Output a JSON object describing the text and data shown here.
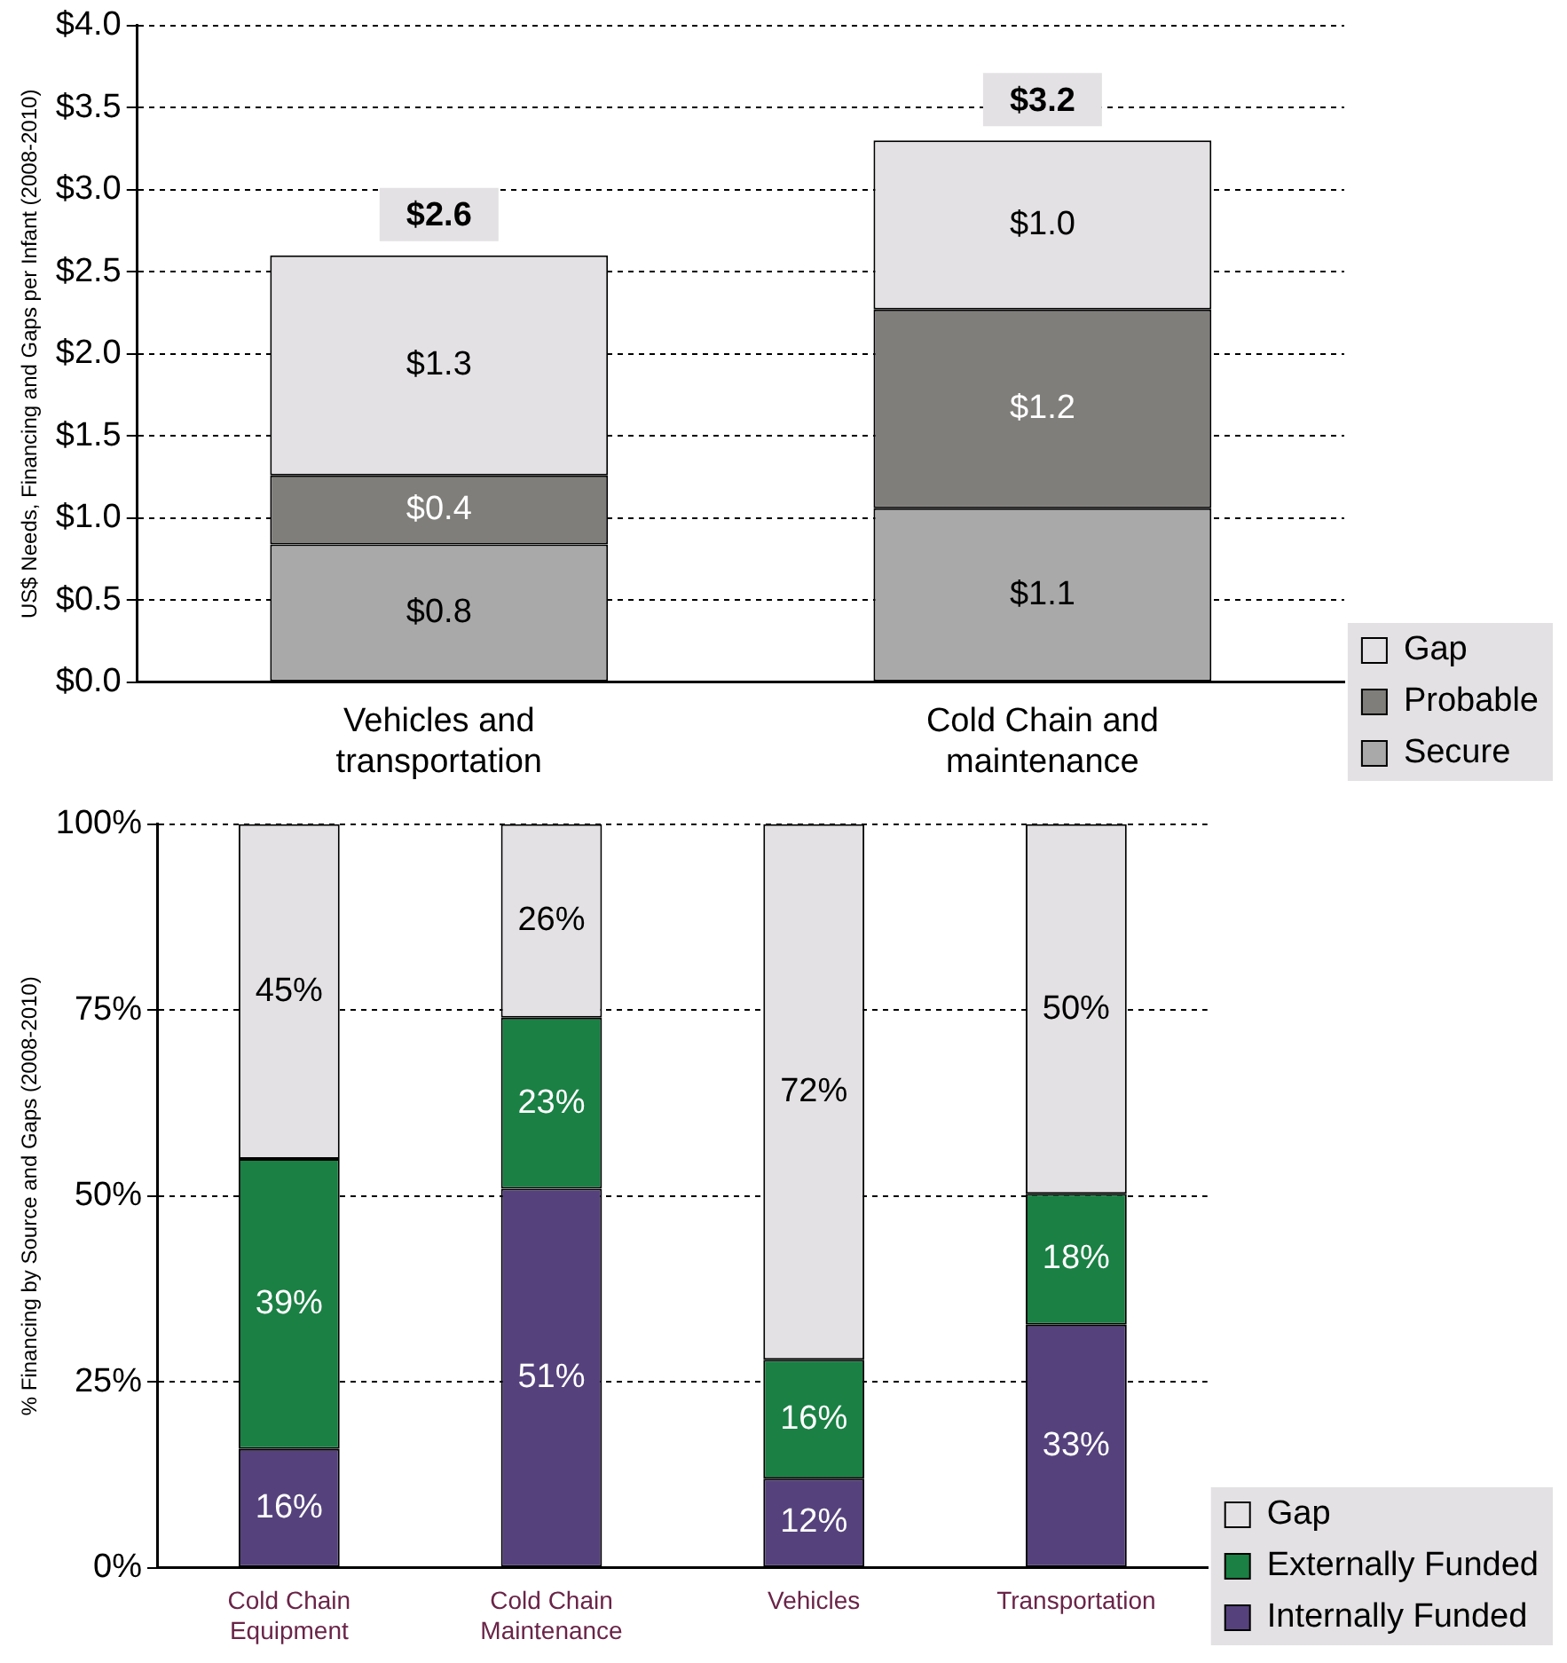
{
  "chart_data": [
    {
      "type": "bar",
      "stacked": true,
      "ylabel": "US$ Needs, Financing and Gaps per Infant (2008-2010)",
      "categories": [
        "Vehicles and transportation",
        "Cold Chain and maintenance"
      ],
      "series": [
        {
          "name": "Secure",
          "color": "#aaa9a9",
          "values": [
            0.84,
            1.06
          ],
          "value_labels": [
            "$0.8",
            "$1.1"
          ]
        },
        {
          "name": "Probable",
          "color": "#807e7a",
          "values": [
            0.42,
            1.21
          ],
          "value_labels": [
            "$0.4",
            "$1.2"
          ]
        },
        {
          "name": "Gap",
          "color": "#e3e1e3",
          "values": [
            1.34,
            1.03
          ],
          "value_labels": [
            "$1.3",
            "$1.0"
          ]
        }
      ],
      "totals": [
        "$2.6",
        "$3.2"
      ],
      "ylim": [
        0,
        4
      ],
      "yticks": [
        {
          "value": 0,
          "label": "$0.0"
        },
        {
          "value": 0.5,
          "label": "$0.5"
        },
        {
          "value": 1,
          "label": "$1.0"
        },
        {
          "value": 1.5,
          "label": "$1.5"
        },
        {
          "value": 2,
          "label": "$2.0"
        },
        {
          "value": 2.5,
          "label": "$2.5"
        },
        {
          "value": 3,
          "label": "$3.0"
        },
        {
          "value": 3.5,
          "label": "$3.5"
        },
        {
          "value": 4,
          "label": "$4.0"
        }
      ],
      "grid": "y",
      "legend": "bottom right"
    },
    {
      "type": "bar",
      "stacked": true,
      "ylabel": "% Financing by Source and Gaps (2008-2010)",
      "categories": [
        "Cold Chain Equipment",
        "Cold Chain Maintenance",
        "Vehicles",
        "Transportation"
      ],
      "series": [
        {
          "name": "Internally Funded",
          "color": "#55427c",
          "values": [
            16,
            51,
            12,
            32.7
          ],
          "value_labels": [
            "16%",
            "51%",
            "12%",
            "33%"
          ]
        },
        {
          "name": "Externally Funded",
          "color": "#1a8044",
          "values": [
            39,
            23,
            16,
            17.6
          ],
          "value_labels": [
            "39%",
            "23%",
            "16%",
            "18%"
          ]
        },
        {
          "name": "Gap",
          "color": "#e3e1e3",
          "values": [
            45,
            26,
            72,
            49.7
          ],
          "value_labels": [
            "45%",
            "26%",
            "72%",
            "50%"
          ]
        }
      ],
      "ylim": [
        0,
        100
      ],
      "yticks": [
        {
          "value": 0,
          "label": "0%"
        },
        {
          "value": 25,
          "label": "25%"
        },
        {
          "value": 50,
          "label": "50%"
        },
        {
          "value": 75,
          "label": "75%"
        },
        {
          "value": 100,
          "label": "100%"
        }
      ],
      "grid": "y",
      "legend": "bottom right"
    }
  ]
}
